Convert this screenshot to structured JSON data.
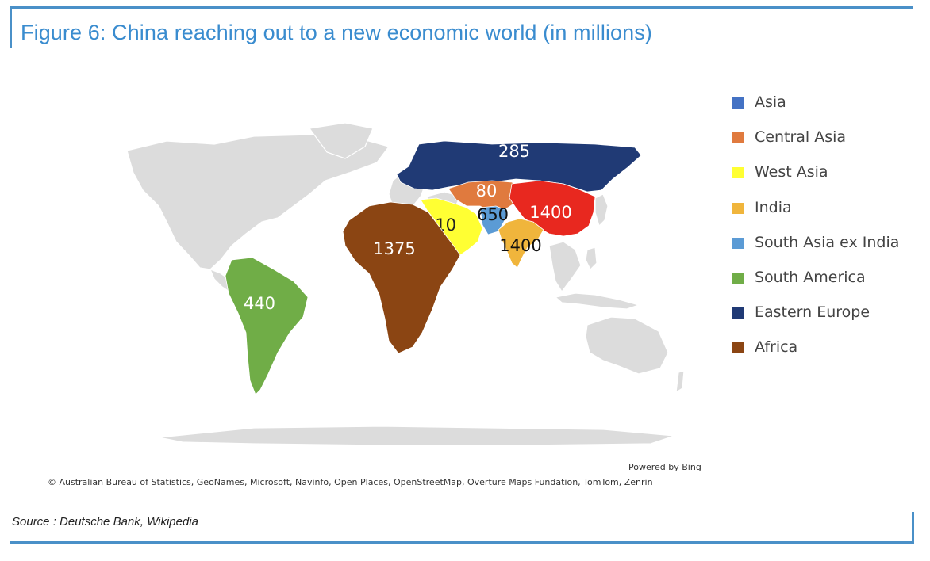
{
  "title": "Figure 6: China reaching out to a new economic world (in millions)",
  "legend": [
    {
      "label": "Asia",
      "color": "#4472c4"
    },
    {
      "label": "Central Asia",
      "color": "#e07a3e"
    },
    {
      "label": "West Asia",
      "color": "#ffff33"
    },
    {
      "label": "India",
      "color": "#f0b53c"
    },
    {
      "label": "South Asia ex India",
      "color": "#5b9bd5"
    },
    {
      "label": "South America",
      "color": "#70ad47"
    },
    {
      "label": "Eastern Europe",
      "color": "#203a75"
    },
    {
      "label": "Africa",
      "color": "#8b4513"
    }
  ],
  "regions": {
    "eastern_europe": {
      "value": "285",
      "color": "#203a75"
    },
    "central_asia": {
      "value": "80",
      "color": "#e07a3e"
    },
    "china": {
      "value": "1400",
      "color": "#e8281f"
    },
    "west_asia": {
      "value": "310",
      "color": "#ffff33"
    },
    "south_asia_ex_india": {
      "value": "650",
      "color": "#5b9bd5"
    },
    "india": {
      "value": "1400",
      "color": "#f0b53c"
    },
    "africa": {
      "value": "1375",
      "color": "#8b4513"
    },
    "south_america": {
      "value": "440",
      "color": "#70ad47"
    }
  },
  "powered_by": "Powered by Bing",
  "copyright": "© Australian Bureau of Statistics, GeoNames, Microsoft, Navinfo, Open Places, OpenStreetMap, Overture Maps Fundation, TomTom, Zenrin",
  "source": "Source : Deutsche Bank, Wikipedia"
}
